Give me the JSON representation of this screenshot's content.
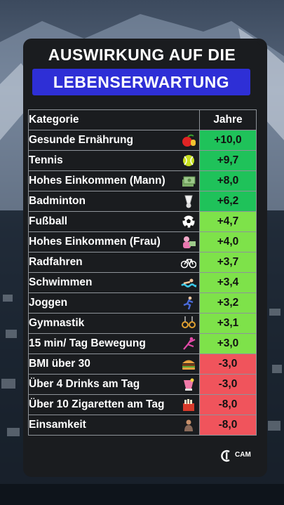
{
  "title_line1": "AUSWIRKUNG AUF DIE",
  "title_line2": "LEBENSERWARTUNG",
  "table": {
    "header_category": "Kategorie",
    "header_value": "Jahre",
    "rows": [
      {
        "label": "Gesunde  Ernährung",
        "value": "+10,0",
        "color": "#1fc25a",
        "icon": "apple-icon"
      },
      {
        "label": "Tennis",
        "value": "+9,7",
        "color": "#1fc25a",
        "icon": "tennis-ball-icon"
      },
      {
        "label": "Hohes Einkommen (Mann)",
        "value": "+8,0",
        "color": "#1fc25a",
        "icon": "money-icon"
      },
      {
        "label": "Badminton",
        "value": "+6,2",
        "color": "#1fc25a",
        "icon": "shuttlecock-icon"
      },
      {
        "label": "Fußball",
        "value": "+4,7",
        "color": "#7ee24a",
        "icon": "soccer-ball-icon"
      },
      {
        "label": "Hohes Einkommen (Frau)",
        "value": "+4,0",
        "color": "#7ee24a",
        "icon": "woman-money-icon"
      },
      {
        "label": "Radfahren",
        "value": "+3,7",
        "color": "#7ee24a",
        "icon": "bicycle-icon"
      },
      {
        "label": "Schwimmen",
        "value": "+3,4",
        "color": "#7ee24a",
        "icon": "swimmer-icon"
      },
      {
        "label": "Joggen",
        "value": "+3,2",
        "color": "#7ee24a",
        "icon": "runner-icon"
      },
      {
        "label": "Gymnastik",
        "value": "+3,1",
        "color": "#7ee24a",
        "icon": "rings-icon"
      },
      {
        "label": "15 min/ Tag Bewegung",
        "value": "+3,0",
        "color": "#7ee24a",
        "icon": "gymnast-icon"
      },
      {
        "label": "BMI über 30",
        "value": "-3,0",
        "color": "#f0545c",
        "icon": "burger-icon"
      },
      {
        "label": "Über 4 Drinks am Tag",
        "value": "-3,0",
        "color": "#f0545c",
        "icon": "cocktail-icon"
      },
      {
        "label": "Über 10 Zigaretten am Tag",
        "value": "-8,0",
        "color": "#f0545c",
        "icon": "cigarettes-icon"
      },
      {
        "label": "Einsamkeit",
        "value": "-8,0",
        "color": "#f0545c",
        "icon": "lonely-person-icon"
      }
    ]
  },
  "logo_text": "CAM"
}
